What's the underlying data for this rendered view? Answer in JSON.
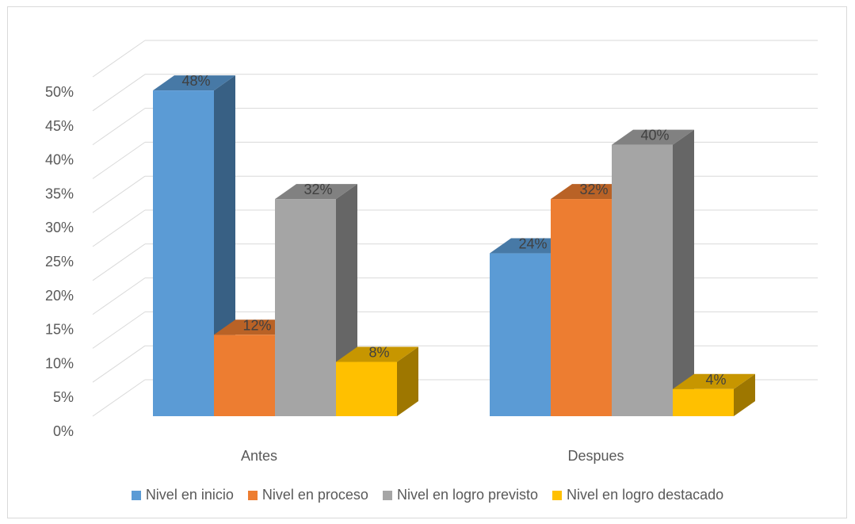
{
  "chart_data": {
    "type": "bar",
    "variant": "3d-clustered-column",
    "categories": [
      "Antes",
      "Despues"
    ],
    "series": [
      {
        "name": "Nivel en inicio",
        "values": [
          48,
          24
        ],
        "color": "#5b9bd5"
      },
      {
        "name": "Nivel en proceso",
        "values": [
          12,
          32
        ],
        "color": "#ed7d31"
      },
      {
        "name": "Nivel en logro previsto",
        "values": [
          32,
          40
        ],
        "color": "#a5a5a5"
      },
      {
        "name": "Nivel en logro destacado",
        "values": [
          8,
          4
        ],
        "color": "#ffc000"
      }
    ],
    "data_labels": [
      [
        "48%",
        "24%"
      ],
      [
        "12%",
        "32%"
      ],
      [
        "32%",
        "40%"
      ],
      [
        "8%",
        "4%"
      ]
    ],
    "y_ticks": [
      "0%",
      "5%",
      "10%",
      "15%",
      "20%",
      "25%",
      "30%",
      "35%",
      "40%",
      "45%",
      "50%"
    ],
    "ylim": [
      0,
      50
    ],
    "grid": true,
    "legend_position": "bottom"
  }
}
